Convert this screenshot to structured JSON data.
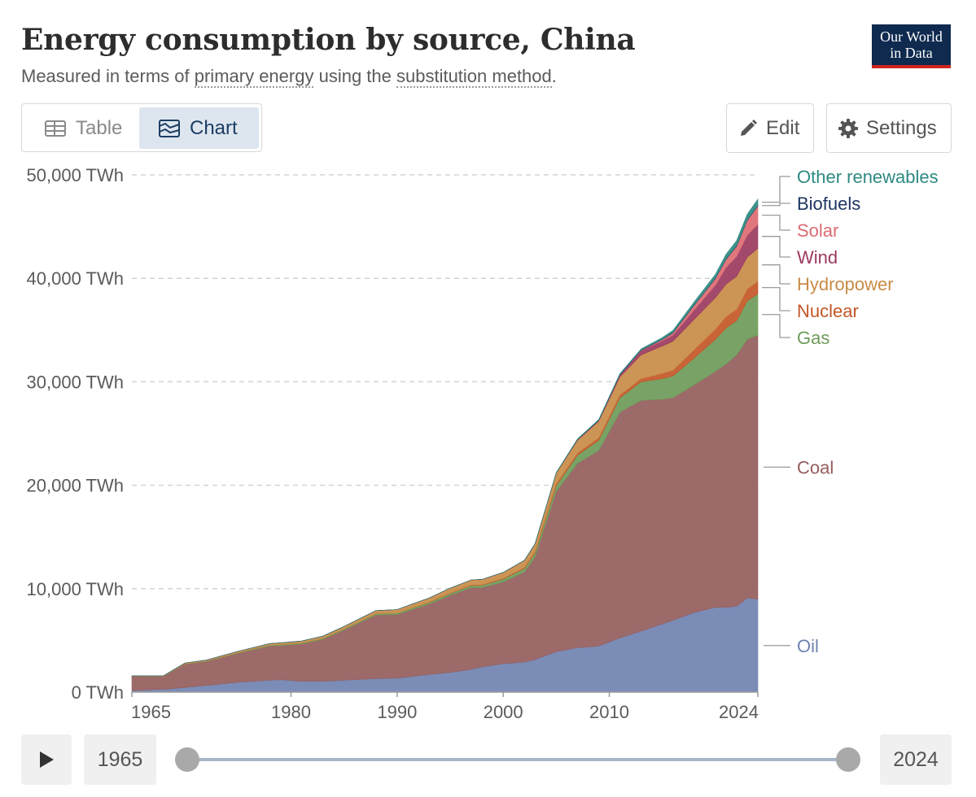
{
  "header": {
    "title": "Energy consumption by source, China",
    "subtitle_prefix": "Measured in terms of ",
    "subtitle_link1": "primary energy",
    "subtitle_middle": " using the ",
    "subtitle_link2": "substitution method",
    "subtitle_suffix": ".",
    "logo_line1": "Our World",
    "logo_line2": "in Data"
  },
  "toolbar": {
    "table_label": "Table",
    "chart_label": "Chart",
    "edit_label": "Edit",
    "settings_label": "Settings"
  },
  "timeline": {
    "start_year": "1965",
    "end_year": "2024"
  },
  "colors": {
    "oil": "#7082b0",
    "coal": "#955d5d",
    "gas": "#6e9b59",
    "nuclear": "#c45627",
    "hydropower": "#c88b46",
    "wind": "#9b3960",
    "solar": "#dc6b72",
    "biofuels": "#1e3562",
    "other_renewables": "#2e8a82"
  },
  "chart_data": {
    "type": "area",
    "stacked": true,
    "title": "Energy consumption by source, China",
    "subtitle": "Measured in terms of primary energy using the substitution method.",
    "x": [
      1965,
      1967,
      1968,
      1970,
      1972,
      1975,
      1978,
      1979,
      1981,
      1983,
      1985,
      1988,
      1990,
      1993,
      1995,
      1997,
      1998,
      2000,
      2002,
      2003,
      2005,
      2007,
      2009,
      2011,
      2013,
      2015,
      2016,
      2018,
      2020,
      2021,
      2022,
      2023,
      2024
    ],
    "x_ticks": [
      "1965",
      "1980",
      "1990",
      "2000",
      "2010",
      "2024"
    ],
    "y_ticks": [
      "0 TWh",
      "10,000 TWh",
      "20,000 TWh",
      "30,000 TWh",
      "40,000 TWh",
      "50,000 TWh"
    ],
    "ylim": [
      0,
      50000
    ],
    "grid": "horizontal dashed",
    "legend": "right, labels aligned to series",
    "series": [
      {
        "name": "Oil",
        "color_key": "oil",
        "values": [
          140,
          250,
          270,
          450,
          650,
          950,
          1150,
          1200,
          1050,
          1050,
          1150,
          1300,
          1350,
          1700,
          1900,
          2200,
          2450,
          2750,
          2900,
          3150,
          3900,
          4300,
          4450,
          5250,
          5900,
          6600,
          6950,
          7700,
          8200,
          8200,
          8300,
          9100,
          9000
        ]
      },
      {
        "name": "Coal",
        "color_key": "coal",
        "values": [
          1400,
          1250,
          1250,
          2250,
          2300,
          2800,
          3300,
          3300,
          3600,
          4050,
          4850,
          6150,
          6150,
          6800,
          7450,
          7900,
          7650,
          7900,
          8700,
          9900,
          15500,
          17800,
          18900,
          21800,
          22300,
          21700,
          21500,
          22000,
          22800,
          23500,
          24300,
          25000,
          25500
        ]
      },
      {
        "name": "Gas",
        "color_key": "gas",
        "values": [
          10,
          15,
          15,
          30,
          40,
          60,
          80,
          90,
          90,
          90,
          100,
          130,
          150,
          160,
          180,
          200,
          220,
          280,
          350,
          400,
          550,
          800,
          1000,
          1400,
          1800,
          2000,
          2100,
          2600,
          3100,
          3500,
          3300,
          3700,
          4000
        ]
      },
      {
        "name": "Nuclear",
        "color_key": "nuclear",
        "values": [
          0,
          0,
          0,
          0,
          0,
          0,
          0,
          0,
          0,
          0,
          0,
          0,
          0,
          30,
          40,
          50,
          50,
          60,
          80,
          100,
          180,
          200,
          230,
          260,
          300,
          500,
          560,
          790,
          980,
          1080,
          1100,
          1150,
          1200
        ]
      },
      {
        "name": "Hydropower",
        "color_key": "hydropower",
        "values": [
          40,
          50,
          55,
          80,
          100,
          130,
          160,
          170,
          200,
          220,
          250,
          300,
          330,
          400,
          480,
          500,
          530,
          580,
          700,
          780,
          1050,
          1250,
          1600,
          1750,
          2300,
          2650,
          2800,
          2950,
          3050,
          3150,
          3200,
          3100,
          3200
        ]
      },
      {
        "name": "Wind",
        "color_key": "wind",
        "values": [
          0,
          0,
          0,
          0,
          0,
          0,
          0,
          0,
          0,
          0,
          0,
          0,
          0,
          0,
          0,
          0,
          0,
          0,
          0,
          0,
          10,
          50,
          80,
          200,
          400,
          500,
          600,
          900,
          1200,
          1600,
          1900,
          2100,
          2300
        ]
      },
      {
        "name": "Solar",
        "color_key": "solar",
        "values": [
          0,
          0,
          0,
          0,
          0,
          0,
          0,
          0,
          0,
          0,
          0,
          0,
          0,
          0,
          0,
          0,
          0,
          0,
          0,
          0,
          0,
          0,
          0,
          10,
          40,
          130,
          210,
          450,
          650,
          800,
          1000,
          1450,
          1800
        ]
      },
      {
        "name": "Biofuels",
        "color_key": "biofuels",
        "values": [
          0,
          0,
          0,
          0,
          0,
          0,
          0,
          0,
          0,
          0,
          0,
          0,
          0,
          0,
          0,
          0,
          0,
          0,
          10,
          10,
          20,
          30,
          30,
          40,
          40,
          40,
          45,
          50,
          55,
          60,
          60,
          60,
          60
        ]
      },
      {
        "name": "Other renewables",
        "color_key": "other_renewables",
        "values": [
          0,
          0,
          0,
          0,
          0,
          0,
          0,
          0,
          0,
          0,
          0,
          0,
          0,
          0,
          0,
          0,
          0,
          0,
          0,
          0,
          20,
          40,
          60,
          80,
          100,
          160,
          200,
          280,
          350,
          430,
          490,
          540,
          590
        ]
      }
    ]
  }
}
